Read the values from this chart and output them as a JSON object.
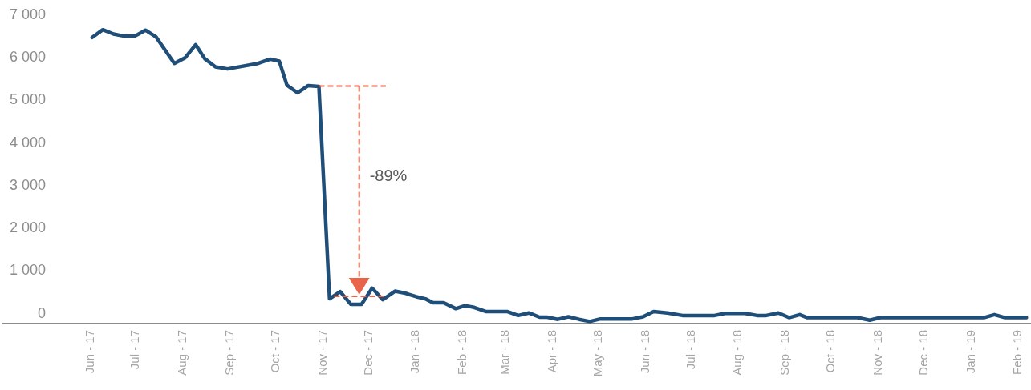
{
  "chart_data": {
    "type": "line",
    "x": [
      "2017-06-03",
      "2017-06-10",
      "2017-06-17",
      "2017-06-24",
      "2017-07-01",
      "2017-07-08",
      "2017-07-15",
      "2017-07-27",
      "2017-08-03",
      "2017-08-10",
      "2017-08-16",
      "2017-08-23",
      "2017-08-31",
      "2017-09-20",
      "2017-09-28",
      "2017-10-04",
      "2017-10-09",
      "2017-10-16",
      "2017-10-23",
      "2017-10-30",
      "2017-11-06",
      "2017-11-13",
      "2017-11-20",
      "2017-11-27",
      "2017-12-04",
      "2017-12-11",
      "2017-12-19",
      "2017-12-25",
      "2018-01-02",
      "2018-01-08",
      "2018-01-13",
      "2018-01-20",
      "2018-01-28",
      "2018-02-03",
      "2018-02-09",
      "2018-02-17",
      "2018-03-03",
      "2018-03-10",
      "2018-03-17",
      "2018-03-24",
      "2018-03-29",
      "2018-04-05",
      "2018-04-12",
      "2018-04-19",
      "2018-04-26",
      "2018-05-03",
      "2018-05-24",
      "2018-05-31",
      "2018-06-07",
      "2018-06-16",
      "2018-06-26",
      "2018-07-17",
      "2018-07-24",
      "2018-08-06",
      "2018-08-14",
      "2018-08-20",
      "2018-08-28",
      "2018-09-04",
      "2018-09-11",
      "2018-09-16",
      "2018-10-19",
      "2018-10-27",
      "2018-11-03",
      "2019-01-10",
      "2019-01-17",
      "2019-01-24",
      "2019-02-07"
    ],
    "series": [
      {
        "color": "#1f4e79",
        "values": [
          6460,
          6640,
          6540,
          6490,
          6490,
          6630,
          6470,
          5850,
          5980,
          6290,
          5960,
          5770,
          5720,
          5850,
          5950,
          5900,
          5340,
          5160,
          5330,
          5310,
          330,
          500,
          200,
          200,
          580,
          310,
          510,
          470,
          380,
          330,
          240,
          240,
          100,
          170,
          130,
          30,
          30,
          -60,
          0,
          -100,
          -100,
          -150,
          -90,
          -150,
          -200,
          -140,
          -140,
          -90,
          30,
          0,
          -60,
          -60,
          -10,
          -10,
          -60,
          -60,
          0,
          -110,
          -40,
          -110,
          -110,
          -170,
          -110,
          -110,
          -40,
          -110,
          -110
        ]
      },
      {
        "color": "#e8644b",
        "x": [
          "2017-10-30",
          "2017-12-13"
        ],
        "values": [
          5320,
          5320
        ],
        "line_style": "dashed"
      },
      {
        "color": "#e8644b",
        "x": [
          "2017-11-09",
          "2017-12-12"
        ],
        "values": [
          390,
          390
        ],
        "line_style": "dashed"
      }
    ],
    "xlim": [
      "2017-04-05",
      "2019-02-10"
    ],
    "xticks": [
      {
        "value": "2017-06-01",
        "label": "Jun - 17"
      },
      {
        "value": "2017-07-01",
        "label": "Jul - 17"
      },
      {
        "value": "2017-08-01",
        "label": "Aug - 17"
      },
      {
        "value": "2017-09-01",
        "label": "Sep - 17"
      },
      {
        "value": "2017-10-01",
        "label": "Oct - 17"
      },
      {
        "value": "2017-11-01",
        "label": "Nov - 17"
      },
      {
        "value": "2017-12-01",
        "label": "Dec - 17"
      },
      {
        "value": "2018-01-01",
        "label": "Jan - 18"
      },
      {
        "value": "2018-02-01",
        "label": "Feb - 18"
      },
      {
        "value": "2018-03-01",
        "label": "Mar - 18"
      },
      {
        "value": "2018-04-01",
        "label": "Apr - 18"
      },
      {
        "value": "2018-05-01",
        "label": "May - 18"
      },
      {
        "value": "2018-06-01",
        "label": "Jun - 18"
      },
      {
        "value": "2018-07-01",
        "label": "Jul - 18"
      },
      {
        "value": "2018-08-01",
        "label": "Aug - 18"
      },
      {
        "value": "2018-09-01",
        "label": "Sep - 18"
      },
      {
        "value": "2018-10-01",
        "label": "Oct - 18"
      },
      {
        "value": "2018-11-01",
        "label": "Nov - 18"
      },
      {
        "value": "2018-12-01",
        "label": "Dec - 18"
      },
      {
        "value": "2019-01-01",
        "label": "Jan - 19"
      },
      {
        "value": "2019-02-01",
        "label": "Feb - 19"
      }
    ],
    "ylim": [
      -250,
      7000
    ],
    "yticks": [
      0,
      {
        "value": 1000,
        "label": "1 000"
      },
      {
        "value": 2000,
        "label": "2 000"
      },
      {
        "value": 3000,
        "label": "3 000"
      },
      {
        "value": 4000,
        "label": "4 000"
      },
      {
        "value": 5000,
        "label": "5 000"
      },
      {
        "value": 6000,
        "label": "6 000"
      },
      {
        "value": 7000,
        "label": "7 000"
      }
    ],
    "annotations": [
      "-89%"
    ],
    "marker": "none",
    "line_style": "solid",
    "grid": false
  }
}
